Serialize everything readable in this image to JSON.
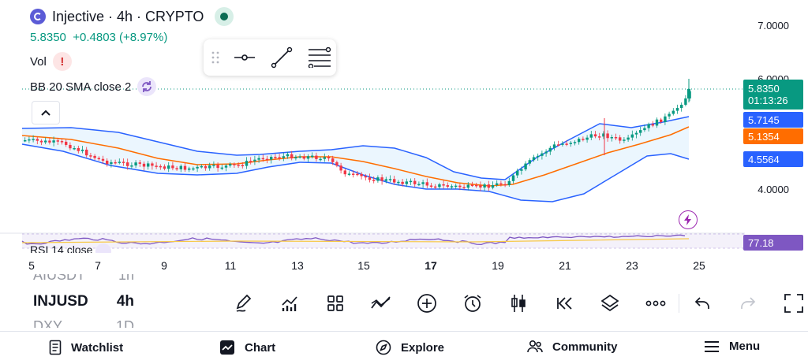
{
  "legend": {
    "title": "Injective · 4h · CRYPTO",
    "price": "5.8350",
    "change": "+0.4803 (+8.97%)",
    "vol_label": "Vol",
    "vol_warning": "!",
    "bb_label": "BB 20 SMA close 2"
  },
  "price_axis": {
    "ticks": [
      "7.0000",
      "6.0000",
      "4.0000"
    ],
    "current_price": "5.8350",
    "countdown": "01:13:26",
    "bb_upper": "5.7145",
    "bb_basis": "5.1354",
    "bb_lower": "4.5564",
    "rsi_value": "77.18"
  },
  "time_axis": {
    "ticks": [
      "5",
      "7",
      "9",
      "11",
      "13",
      "15",
      "17",
      "19",
      "21",
      "23",
      "25"
    ]
  },
  "rsi": {
    "label": "RSI 14 close"
  },
  "symbols": {
    "prev_symbol": "AIUSDT",
    "prev_interval": "1h",
    "current_symbol": "INJUSD",
    "current_interval": "4h",
    "next_symbol": "DXY",
    "next_interval": "1D"
  },
  "bottom_nav": {
    "watchlist": "Watchlist",
    "chart": "Chart",
    "explore": "Explore",
    "community": "Community",
    "menu": "Menu"
  },
  "colors": {
    "up": "#089981",
    "down": "#f23645",
    "bb_band": "#2962ff",
    "bb_basis": "#ff6d00",
    "rsi": "#7e57c2",
    "countdown_bg": "#089981"
  },
  "icons": {
    "toolbar": [
      "pencil-icon",
      "indicators-icon",
      "layouts-icon",
      "compare-icon",
      "add-icon",
      "alert-clock-icon",
      "candles-icon",
      "replay-icon",
      "layers-icon",
      "more-icon",
      "undo-icon",
      "redo-icon",
      "fullscreen-icon"
    ]
  }
}
